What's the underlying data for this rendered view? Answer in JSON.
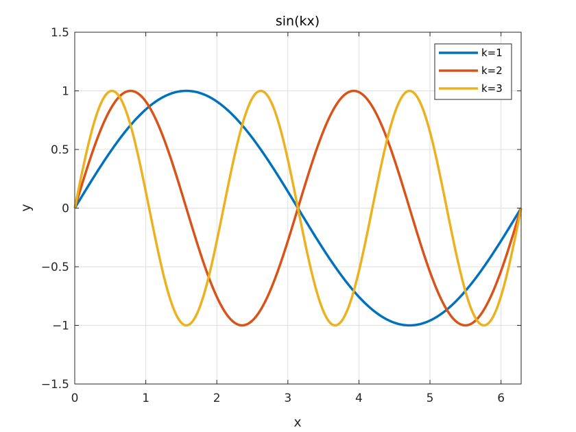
{
  "chart_data": {
    "type": "line",
    "title": "sin(kx)",
    "xlabel": "x",
    "ylabel": "y",
    "xlim": [
      0,
      6.2832
    ],
    "ylim": [
      -1.5,
      1.5
    ],
    "grid": true,
    "legend_position": "top-right",
    "x_ticks": [
      0,
      1,
      2,
      3,
      4,
      5,
      6
    ],
    "x_tick_labels": [
      "0",
      "1",
      "2",
      "3",
      "4",
      "5",
      "6"
    ],
    "y_ticks": [
      -1.5,
      -1,
      -0.5,
      0,
      0.5,
      1,
      1.5
    ],
    "y_tick_labels": [
      "−1.5",
      "−1",
      "−0.5",
      "0",
      "0.5",
      "1",
      "1.5"
    ],
    "series": [
      {
        "name": "k=1",
        "color": "#0072BD",
        "x": [
          0,
          0.3142,
          0.6283,
          0.9425,
          1.2566,
          1.5708,
          1.885,
          2.1991,
          2.5133,
          2.8274,
          3.1416,
          3.4558,
          3.7699,
          4.0841,
          4.3982,
          4.7124,
          5.0265,
          5.3407,
          5.6549,
          5.969,
          6.2832
        ],
        "y": [
          0,
          0.309,
          0.5878,
          0.809,
          0.9511,
          1,
          0.9511,
          0.809,
          0.5878,
          0.309,
          0,
          -0.309,
          -0.5878,
          -0.809,
          -0.9511,
          -1,
          -0.9511,
          -0.809,
          -0.5878,
          -0.309,
          0
        ]
      },
      {
        "name": "k=2",
        "color": "#D95319",
        "x": [
          0,
          0.3142,
          0.6283,
          0.9425,
          1.2566,
          1.5708,
          1.885,
          2.1991,
          2.5133,
          2.8274,
          3.1416,
          3.4558,
          3.7699,
          4.0841,
          4.3982,
          4.7124,
          5.0265,
          5.3407,
          5.6549,
          5.969,
          6.2832
        ],
        "y": [
          0,
          0.5878,
          0.9511,
          0.9511,
          0.5878,
          0,
          -0.5878,
          -0.9511,
          -0.9511,
          -0.5878,
          0,
          0.5878,
          0.9511,
          0.9511,
          0.5878,
          0,
          -0.5878,
          -0.9511,
          -0.9511,
          -0.5878,
          0
        ]
      },
      {
        "name": "k=3",
        "color": "#EDB120",
        "x": [
          0,
          0.3142,
          0.6283,
          0.9425,
          1.2566,
          1.5708,
          1.885,
          2.1991,
          2.5133,
          2.8274,
          3.1416,
          3.4558,
          3.7699,
          4.0841,
          4.3982,
          4.7124,
          5.0265,
          5.3407,
          5.6549,
          5.969,
          6.2832
        ],
        "y": [
          0,
          0.809,
          0.9511,
          0.309,
          -0.5878,
          -1,
          -0.5878,
          0.309,
          0.9511,
          0.809,
          0,
          -0.809,
          -0.9511,
          -0.309,
          0.5878,
          1,
          0.5878,
          -0.309,
          -0.9511,
          -0.809,
          0
        ]
      }
    ]
  }
}
